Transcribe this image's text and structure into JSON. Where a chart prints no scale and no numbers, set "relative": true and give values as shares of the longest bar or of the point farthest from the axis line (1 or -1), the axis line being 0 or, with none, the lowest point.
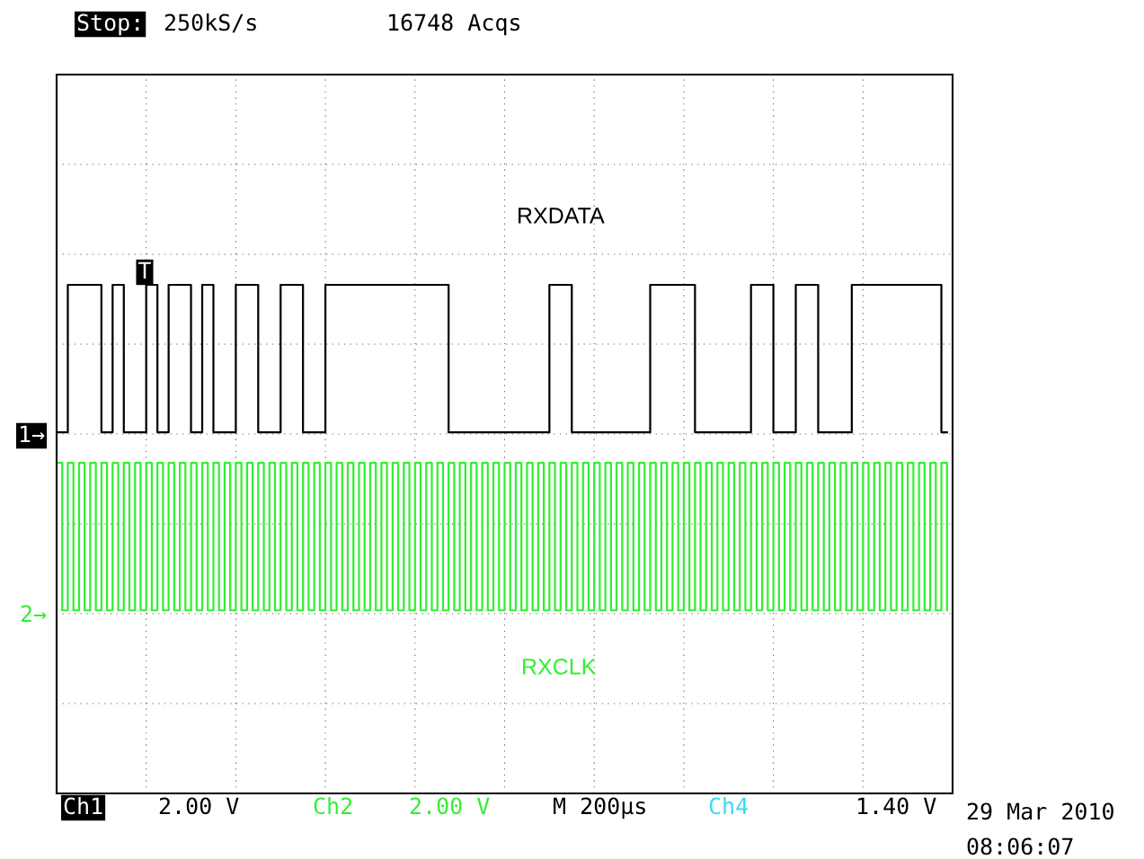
{
  "chart_data": {
    "type": "step",
    "relative": true,
    "grid": true,
    "tick_labels": false,
    "legend": false,
    "categories": [
      null,
      null,
      null,
      null,
      null,
      null,
      null,
      null,
      null,
      null,
      null,
      null,
      null,
      null,
      null,
      null,
      null,
      null,
      null,
      null,
      null,
      null,
      null,
      null,
      null,
      null,
      null,
      null,
      null,
      null,
      null,
      null,
      null,
      null,
      null,
      null,
      null,
      null,
      null,
      null,
      null,
      null,
      null,
      null,
      null,
      null,
      null,
      null,
      null,
      null,
      null,
      null,
      null,
      null,
      null,
      null,
      null,
      null,
      null,
      null,
      null,
      null,
      null,
      null,
      null,
      null,
      null,
      null,
      null,
      null,
      null,
      null,
      null,
      null,
      null,
      null,
      null,
      null,
      null,
      null,
      null,
      null,
      null,
      null,
      null,
      null,
      null,
      null,
      null,
      null,
      null,
      null,
      null,
      null,
      null,
      null,
      null,
      null,
      null,
      null,
      null,
      null,
      null,
      null,
      null,
      null,
      null,
      null,
      null,
      null,
      null,
      null,
      null,
      null,
      null,
      null,
      null,
      null,
      null,
      null,
      null,
      null,
      null,
      null,
      null,
      null,
      null,
      null,
      null,
      null,
      null,
      null,
      null,
      null,
      null,
      null,
      null,
      null,
      null,
      null,
      null,
      null,
      null,
      null,
      null,
      null,
      null,
      null,
      null,
      null,
      null,
      null,
      null,
      null,
      null,
      null,
      null,
      null,
      null,
      null
    ],
    "series": [
      {
        "name": "RXDATA",
        "color": "#000000",
        "values": [
          0.71,
          0.71,
          1,
          1,
          1,
          1,
          1,
          1,
          0.71,
          0.71,
          1,
          1,
          0.71,
          0.71,
          0.71,
          0.71,
          1,
          1,
          0.71,
          0.71,
          1,
          1,
          1,
          1,
          0.71,
          0.71,
          1,
          1,
          0.71,
          0.71,
          0.71,
          0.71,
          1,
          1,
          1,
          1,
          0.71,
          0.71,
          0.71,
          0.71,
          1,
          1,
          1,
          1,
          0.71,
          0.71,
          0.71,
          0.71,
          1,
          1,
          1,
          1,
          1,
          1,
          1,
          1,
          1,
          1,
          1,
          1,
          1,
          1,
          1,
          1,
          1,
          1,
          1,
          1,
          1,
          1,
          0.71,
          0.71,
          0.71,
          0.71,
          0.71,
          0.71,
          0.71,
          0.71,
          0.71,
          0.71,
          0.71,
          0.71,
          0.71,
          0.71,
          0.71,
          0.71,
          0.71,
          0.71,
          1,
          1,
          1,
          1,
          0.71,
          0.71,
          0.71,
          0.71,
          0.71,
          0.71,
          0.71,
          0.71,
          0.71,
          0.71,
          0.71,
          0.71,
          0.71,
          0.71,
          1,
          1,
          1,
          1,
          1,
          1,
          1,
          1,
          0.71,
          0.71,
          0.71,
          0.71,
          0.71,
          0.71,
          0.71,
          0.71,
          0.71,
          0.71,
          1,
          1,
          1,
          1,
          0.71,
          0.71,
          0.71,
          0.71,
          1,
          1,
          1,
          1,
          0.71,
          0.71,
          0.71,
          0.71,
          0.71,
          0.71,
          1,
          1,
          1,
          1,
          1,
          1,
          1,
          1,
          1,
          1,
          1,
          1,
          1,
          1,
          1,
          1,
          0.71,
          0.71
        ]
      },
      {
        "name": "RXCLK",
        "color": "#33ee33",
        "values": [
          0.65,
          0.36,
          0.65,
          0.36,
          0.65,
          0.36,
          0.65,
          0.36,
          0.65,
          0.36,
          0.65,
          0.36,
          0.65,
          0.36,
          0.65,
          0.36,
          0.65,
          0.36,
          0.65,
          0.36,
          0.65,
          0.36,
          0.65,
          0.36,
          0.65,
          0.36,
          0.65,
          0.36,
          0.65,
          0.36,
          0.65,
          0.36,
          0.65,
          0.36,
          0.65,
          0.36,
          0.65,
          0.36,
          0.65,
          0.36,
          0.65,
          0.36,
          0.65,
          0.36,
          0.65,
          0.36,
          0.65,
          0.36,
          0.65,
          0.36,
          0.65,
          0.36,
          0.65,
          0.36,
          0.65,
          0.36,
          0.65,
          0.36,
          0.65,
          0.36,
          0.65,
          0.36,
          0.65,
          0.36,
          0.65,
          0.36,
          0.65,
          0.36,
          0.65,
          0.36,
          0.65,
          0.36,
          0.65,
          0.36,
          0.65,
          0.36,
          0.65,
          0.36,
          0.65,
          0.36,
          0.65,
          0.36,
          0.65,
          0.36,
          0.65,
          0.36,
          0.65,
          0.36,
          0.65,
          0.36,
          0.65,
          0.36,
          0.65,
          0.36,
          0.65,
          0.36,
          0.65,
          0.36,
          0.65,
          0.36,
          0.65,
          0.36,
          0.65,
          0.36,
          0.65,
          0.36,
          0.65,
          0.36,
          0.65,
          0.36,
          0.65,
          0.36,
          0.65,
          0.36,
          0.65,
          0.36,
          0.65,
          0.36,
          0.65,
          0.36,
          0.65,
          0.36,
          0.65,
          0.36,
          0.65,
          0.36,
          0.65,
          0.36,
          0.65,
          0.36,
          0.65,
          0.36,
          0.65,
          0.36,
          0.65,
          0.36,
          0.65,
          0.36,
          0.65,
          0.36,
          0.65,
          0.36,
          0.65,
          0.36,
          0.65,
          0.36,
          0.65,
          0.36,
          0.65,
          0.36,
          0.65,
          0.36,
          0.65,
          0.36,
          0.65,
          0.36,
          0.65,
          0.36,
          0.65,
          0.36
        ]
      }
    ],
    "annotations": [
      "Stop:",
      "250kS/s",
      "16748 Acqs",
      "T",
      "1→",
      "2→",
      "Ch1",
      "2.00 V",
      "Ch2",
      "2.00 V",
      "M 200µs",
      "Ch4",
      "1.40 V",
      "29 Mar 2010",
      "08:06:07"
    ]
  }
}
